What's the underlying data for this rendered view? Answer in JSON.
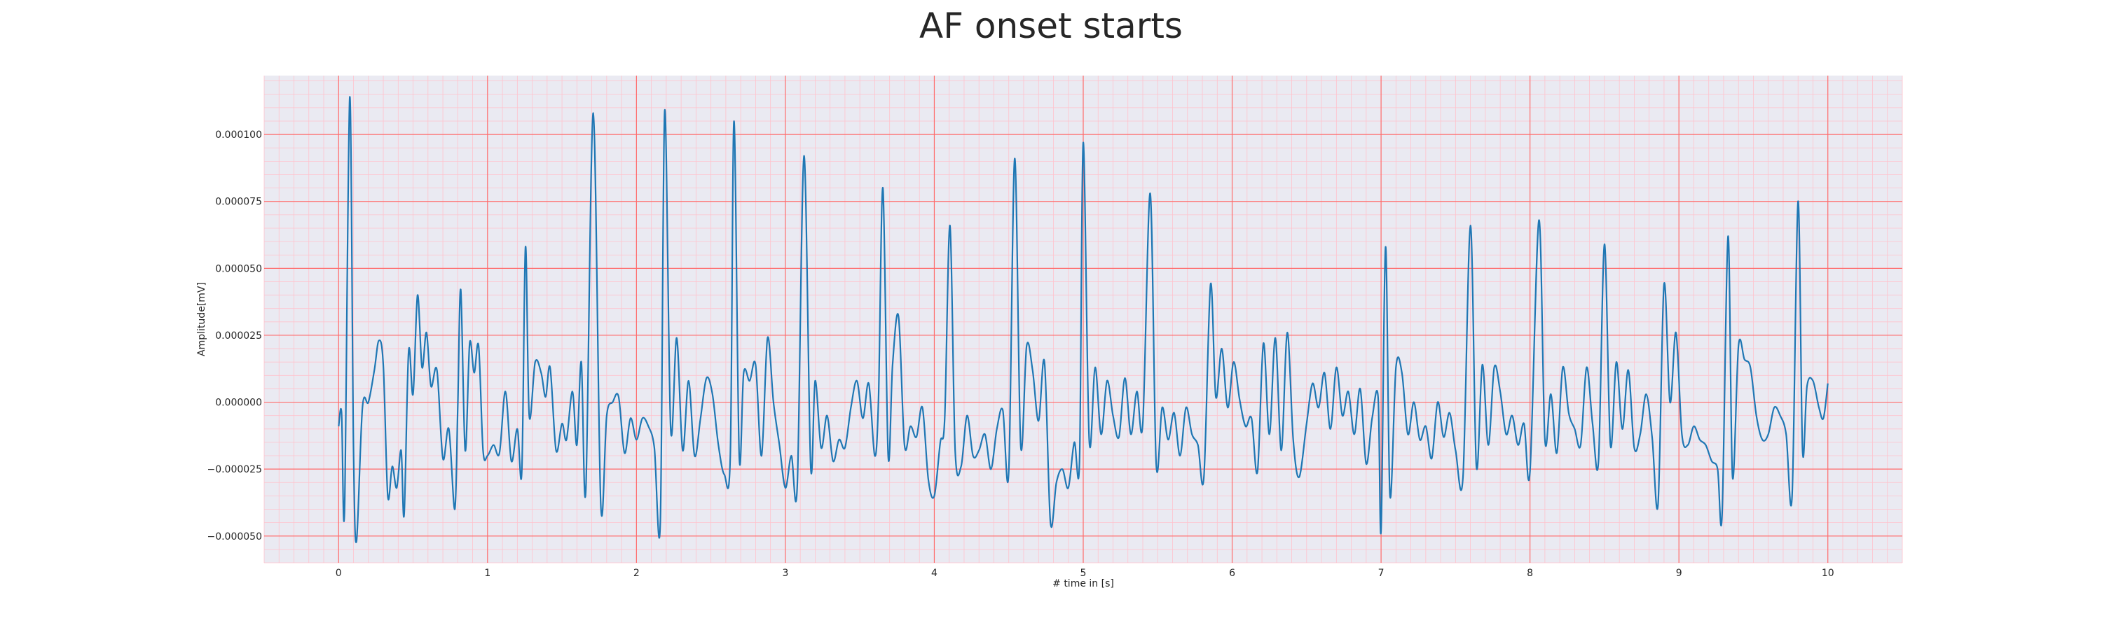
{
  "chart_data": {
    "type": "line",
    "title": "AF onset starts",
    "xlabel": "# time in [s]",
    "ylabel": "Amplitude[mV]",
    "xlim": [
      -0.5,
      10.5
    ],
    "ylim": [
      -6e-05,
      0.000122
    ],
    "x_ticks": [
      0,
      1,
      2,
      3,
      4,
      5,
      6,
      7,
      8,
      9,
      10
    ],
    "x_tick_labels": [
      "0",
      "1",
      "2",
      "3",
      "4",
      "5",
      "6",
      "7",
      "8",
      "9",
      "10"
    ],
    "y_ticks": [
      -5e-05,
      -2.5e-05,
      0,
      2.5e-05,
      5e-05,
      7.5e-05,
      0.0001
    ],
    "y_tick_labels": [
      "−0.000050",
      "−0.000025",
      "0.000000",
      "0.000025",
      "0.000050",
      "0.000075",
      "0.000100"
    ],
    "grid": "ECG paper grid: major red lines at ticks, minor pink lines",
    "colors": {
      "line": "#1f77b4",
      "plot_background": "#eaeaf2",
      "major_grid": "#ff6b6b",
      "minor_grid": "#ffc2cc"
    },
    "series": [
      {
        "values": [
          [
            0.0,
            -9e-06
          ],
          [
            0.02,
            -4e-06
          ],
          [
            0.04,
            -4e-05
          ],
          [
            0.075,
            0.000114
          ],
          [
            0.1,
            -1.7e-05
          ],
          [
            0.12,
            -5.2e-05
          ],
          [
            0.16,
            -2e-06
          ],
          [
            0.2,
            0.0
          ],
          [
            0.24,
            1.2e-05
          ],
          [
            0.27,
            2.3e-05
          ],
          [
            0.3,
            1.4e-05
          ],
          [
            0.33,
            -3.5e-05
          ],
          [
            0.36,
            -2.4e-05
          ],
          [
            0.39,
            -3.2e-05
          ],
          [
            0.42,
            -1.8e-05
          ],
          [
            0.44,
            -4.2e-05
          ],
          [
            0.47,
            1.9e-05
          ],
          [
            0.5,
            3e-06
          ],
          [
            0.53,
            4e-05
          ],
          [
            0.56,
            1.3e-05
          ],
          [
            0.59,
            2.6e-05
          ],
          [
            0.62,
            6e-06
          ],
          [
            0.66,
            1.2e-05
          ],
          [
            0.7,
            -2.1e-05
          ],
          [
            0.74,
            -1e-05
          ],
          [
            0.78,
            -4e-05
          ],
          [
            0.8,
            -2e-06
          ],
          [
            0.82,
            4.2e-05
          ],
          [
            0.85,
            -1.8e-05
          ],
          [
            0.88,
            2.2e-05
          ],
          [
            0.91,
            1.1e-05
          ],
          [
            0.94,
            2.1e-05
          ],
          [
            0.97,
            -1.8e-05
          ],
          [
            1.0,
            -2e-05
          ],
          [
            1.04,
            -1.6e-05
          ],
          [
            1.08,
            -1.9e-05
          ],
          [
            1.12,
            4e-06
          ],
          [
            1.16,
            -2.2e-05
          ],
          [
            1.2,
            -1e-05
          ],
          [
            1.23,
            -2.6e-05
          ],
          [
            1.255,
            5.8e-05
          ],
          [
            1.28,
            -5e-06
          ],
          [
            1.32,
            1.5e-05
          ],
          [
            1.36,
            1.1e-05
          ],
          [
            1.39,
            2e-06
          ],
          [
            1.42,
            1.3e-05
          ],
          [
            1.46,
            -1.8e-05
          ],
          [
            1.5,
            -8e-06
          ],
          [
            1.53,
            -1.4e-05
          ],
          [
            1.57,
            4e-06
          ],
          [
            1.6,
            -1.6e-05
          ],
          [
            1.63,
            1.5e-05
          ],
          [
            1.66,
            -3.3e-05
          ],
          [
            1.71,
            0.000108
          ],
          [
            1.76,
            -3.8e-05
          ],
          [
            1.8,
            -5e-06
          ],
          [
            1.84,
            0.0
          ],
          [
            1.88,
            2e-06
          ],
          [
            1.92,
            -1.9e-05
          ],
          [
            1.96,
            -6e-06
          ],
          [
            2.0,
            -1.4e-05
          ],
          [
            2.04,
            -6e-06
          ],
          [
            2.08,
            -9e-06
          ],
          [
            2.12,
            -1.7e-05
          ],
          [
            2.16,
            -4.5e-05
          ],
          [
            2.19,
            0.000109
          ],
          [
            2.23,
            -1e-05
          ],
          [
            2.27,
            2.4e-05
          ],
          [
            2.31,
            -1.8e-05
          ],
          [
            2.35,
            8e-06
          ],
          [
            2.39,
            -2e-05
          ],
          [
            2.43,
            -6e-06
          ],
          [
            2.47,
            9e-06
          ],
          [
            2.51,
            3e-06
          ],
          [
            2.55,
            -1.6e-05
          ],
          [
            2.59,
            -2.7e-05
          ],
          [
            2.63,
            -2e-05
          ],
          [
            2.655,
            0.000105
          ],
          [
            2.69,
            -2e-05
          ],
          [
            2.72,
            1.1e-05
          ],
          [
            2.76,
            8e-06
          ],
          [
            2.8,
            1.4e-05
          ],
          [
            2.84,
            -2e-05
          ],
          [
            2.88,
            2.4e-05
          ],
          [
            2.92,
            0.0
          ],
          [
            2.96,
            -1.6e-05
          ],
          [
            3.0,
            -3.2e-05
          ],
          [
            3.04,
            -2e-05
          ],
          [
            3.08,
            -3.1e-05
          ],
          [
            3.125,
            9.2e-05
          ],
          [
            3.17,
            -2.4e-05
          ],
          [
            3.2,
            8e-06
          ],
          [
            3.24,
            -1.7e-05
          ],
          [
            3.28,
            -5e-06
          ],
          [
            3.32,
            -2.2e-05
          ],
          [
            3.36,
            -1.4e-05
          ],
          [
            3.4,
            -1.7e-05
          ],
          [
            3.44,
            -2e-06
          ],
          [
            3.48,
            8e-06
          ],
          [
            3.52,
            -6e-06
          ],
          [
            3.56,
            7e-06
          ],
          [
            3.6,
            -2e-05
          ],
          [
            3.625,
            1e-06
          ],
          [
            3.655,
            8e-05
          ],
          [
            3.69,
            -2e-05
          ],
          [
            3.72,
            1.4e-05
          ],
          [
            3.76,
            3.2e-05
          ],
          [
            3.8,
            -1.6e-05
          ],
          [
            3.84,
            -9e-06
          ],
          [
            3.88,
            -1.3e-05
          ],
          [
            3.92,
            -2e-06
          ],
          [
            3.96,
            -2.9e-05
          ],
          [
            4.0,
            -3.5e-05
          ],
          [
            4.04,
            -1.5e-05
          ],
          [
            4.07,
            -6e-06
          ],
          [
            4.105,
            6.6e-05
          ],
          [
            4.14,
            -1.8e-05
          ],
          [
            4.18,
            -2.4e-05
          ],
          [
            4.22,
            -5e-06
          ],
          [
            4.26,
            -2e-05
          ],
          [
            4.3,
            -1.8e-05
          ],
          [
            4.34,
            -1.2e-05
          ],
          [
            4.38,
            -2.5e-05
          ],
          [
            4.42,
            -1e-05
          ],
          [
            4.46,
            -3e-06
          ],
          [
            4.5,
            -2.6e-05
          ],
          [
            4.54,
            9.1e-05
          ],
          [
            4.58,
            -1.6e-05
          ],
          [
            4.62,
            2.1e-05
          ],
          [
            4.66,
            1.2e-05
          ],
          [
            4.7,
            -7e-06
          ],
          [
            4.74,
            1.5e-05
          ],
          [
            4.78,
            -4.5e-05
          ],
          [
            4.82,
            -3e-05
          ],
          [
            4.86,
            -2.5e-05
          ],
          [
            4.9,
            -3.2e-05
          ],
          [
            4.94,
            -1.5e-05
          ],
          [
            4.975,
            -2.2e-05
          ],
          [
            5.0,
            9.7e-05
          ],
          [
            5.04,
            -1.4e-05
          ],
          [
            5.08,
            1.3e-05
          ],
          [
            5.12,
            -1.2e-05
          ],
          [
            5.16,
            8e-06
          ],
          [
            5.2,
            -5e-06
          ],
          [
            5.24,
            -1.3e-05
          ],
          [
            5.28,
            9e-06
          ],
          [
            5.32,
            -1.2e-05
          ],
          [
            5.36,
            4e-06
          ],
          [
            5.4,
            -8e-06
          ],
          [
            5.45,
            7.8e-05
          ],
          [
            5.49,
            -2.3e-05
          ],
          [
            5.53,
            -2e-06
          ],
          [
            5.57,
            -1.4e-05
          ],
          [
            5.61,
            -4e-06
          ],
          [
            5.65,
            -2e-05
          ],
          [
            5.69,
            -2e-06
          ],
          [
            5.73,
            -1.2e-05
          ],
          [
            5.77,
            -1.6e-05
          ],
          [
            5.81,
            -2.8e-05
          ],
          [
            5.855,
            4.4e-05
          ],
          [
            5.89,
            2e-06
          ],
          [
            5.93,
            2e-05
          ],
          [
            5.97,
            -2e-06
          ],
          [
            6.01,
            1.5e-05
          ],
          [
            6.05,
            1e-06
          ],
          [
            6.09,
            -9e-06
          ],
          [
            6.13,
            -6e-06
          ],
          [
            6.17,
            -2.6e-05
          ],
          [
            6.21,
            2.2e-05
          ],
          [
            6.25,
            -1.2e-05
          ],
          [
            6.29,
            2.4e-05
          ],
          [
            6.33,
            -1.8e-05
          ],
          [
            6.37,
            2.6e-05
          ],
          [
            6.41,
            -1.4e-05
          ],
          [
            6.45,
            -2.8e-05
          ],
          [
            6.5,
            -8e-06
          ],
          [
            6.54,
            7e-06
          ],
          [
            6.58,
            -2e-06
          ],
          [
            6.62,
            1.1e-05
          ],
          [
            6.66,
            -1e-05
          ],
          [
            6.7,
            1.3e-05
          ],
          [
            6.74,
            -5e-06
          ],
          [
            6.78,
            4e-06
          ],
          [
            6.82,
            -1.2e-05
          ],
          [
            6.86,
            5e-06
          ],
          [
            6.9,
            -2.3e-05
          ],
          [
            6.94,
            -6e-06
          ],
          [
            6.98,
            2e-06
          ],
          [
            7.0,
            -4.8e-05
          ],
          [
            7.03,
            5.8e-05
          ],
          [
            7.06,
            -3.5e-05
          ],
          [
            7.1,
            1.3e-05
          ],
          [
            7.14,
            1.1e-05
          ],
          [
            7.18,
            -1.2e-05
          ],
          [
            7.22,
            0.0
          ],
          [
            7.26,
            -1.4e-05
          ],
          [
            7.3,
            -9e-06
          ],
          [
            7.34,
            -2.1e-05
          ],
          [
            7.38,
            0.0
          ],
          [
            7.42,
            -1.3e-05
          ],
          [
            7.46,
            -4e-06
          ],
          [
            7.5,
            -1.8e-05
          ],
          [
            7.55,
            -2.8e-05
          ],
          [
            7.6,
            6.6e-05
          ],
          [
            7.64,
            -2.4e-05
          ],
          [
            7.68,
            1.4e-05
          ],
          [
            7.72,
            -1.6e-05
          ],
          [
            7.76,
            1.3e-05
          ],
          [
            7.8,
            4e-06
          ],
          [
            7.84,
            -1.2e-05
          ],
          [
            7.88,
            -5e-06
          ],
          [
            7.92,
            -1.6e-05
          ],
          [
            7.96,
            -8e-06
          ],
          [
            8.0,
            -2.6e-05
          ],
          [
            8.06,
            6.8e-05
          ],
          [
            8.1,
            -1.4e-05
          ],
          [
            8.14,
            3e-06
          ],
          [
            8.18,
            -1.9e-05
          ],
          [
            8.22,
            1.3e-05
          ],
          [
            8.26,
            -4e-06
          ],
          [
            8.3,
            -1e-05
          ],
          [
            8.34,
            -1.6e-05
          ],
          [
            8.38,
            1.3e-05
          ],
          [
            8.42,
            -8e-06
          ],
          [
            8.46,
            -2.2e-05
          ],
          [
            8.5,
            5.9e-05
          ],
          [
            8.54,
            -1.6e-05
          ],
          [
            8.58,
            1.5e-05
          ],
          [
            8.62,
            -1e-05
          ],
          [
            8.66,
            1.2e-05
          ],
          [
            8.7,
            -1.7e-05
          ],
          [
            8.74,
            -1.2e-05
          ],
          [
            8.78,
            3e-06
          ],
          [
            8.82,
            -1.3e-05
          ],
          [
            8.86,
            -3.8e-05
          ],
          [
            8.9,
            4.4e-05
          ],
          [
            8.94,
            0.0
          ],
          [
            8.98,
            2.6e-05
          ],
          [
            9.02,
            -1.2e-05
          ],
          [
            9.06,
            -1.6e-05
          ],
          [
            9.1,
            -9e-06
          ],
          [
            9.14,
            -1.4e-05
          ],
          [
            9.18,
            -1.6e-05
          ],
          [
            9.22,
            -2.2e-05
          ],
          [
            9.26,
            -2.5e-05
          ],
          [
            9.29,
            -4.2e-05
          ],
          [
            9.33,
            6.2e-05
          ],
          [
            9.36,
            -2.8e-05
          ],
          [
            9.4,
            2.1e-05
          ],
          [
            9.44,
            1.6e-05
          ],
          [
            9.48,
            1.3e-05
          ],
          [
            9.52,
            -5e-06
          ],
          [
            9.56,
            -1.4e-05
          ],
          [
            9.6,
            -1.2e-05
          ],
          [
            9.64,
            -2e-06
          ],
          [
            9.68,
            -5e-06
          ],
          [
            9.72,
            -1.2e-05
          ],
          [
            9.76,
            -3.5e-05
          ],
          [
            9.8,
            7.5e-05
          ],
          [
            9.83,
            -1.8e-05
          ],
          [
            9.86,
            6e-06
          ],
          [
            9.9,
            8e-06
          ],
          [
            9.94,
            -2e-06
          ],
          [
            9.97,
            -6e-06
          ],
          [
            10.0,
            7e-06
          ]
        ]
      }
    ]
  }
}
